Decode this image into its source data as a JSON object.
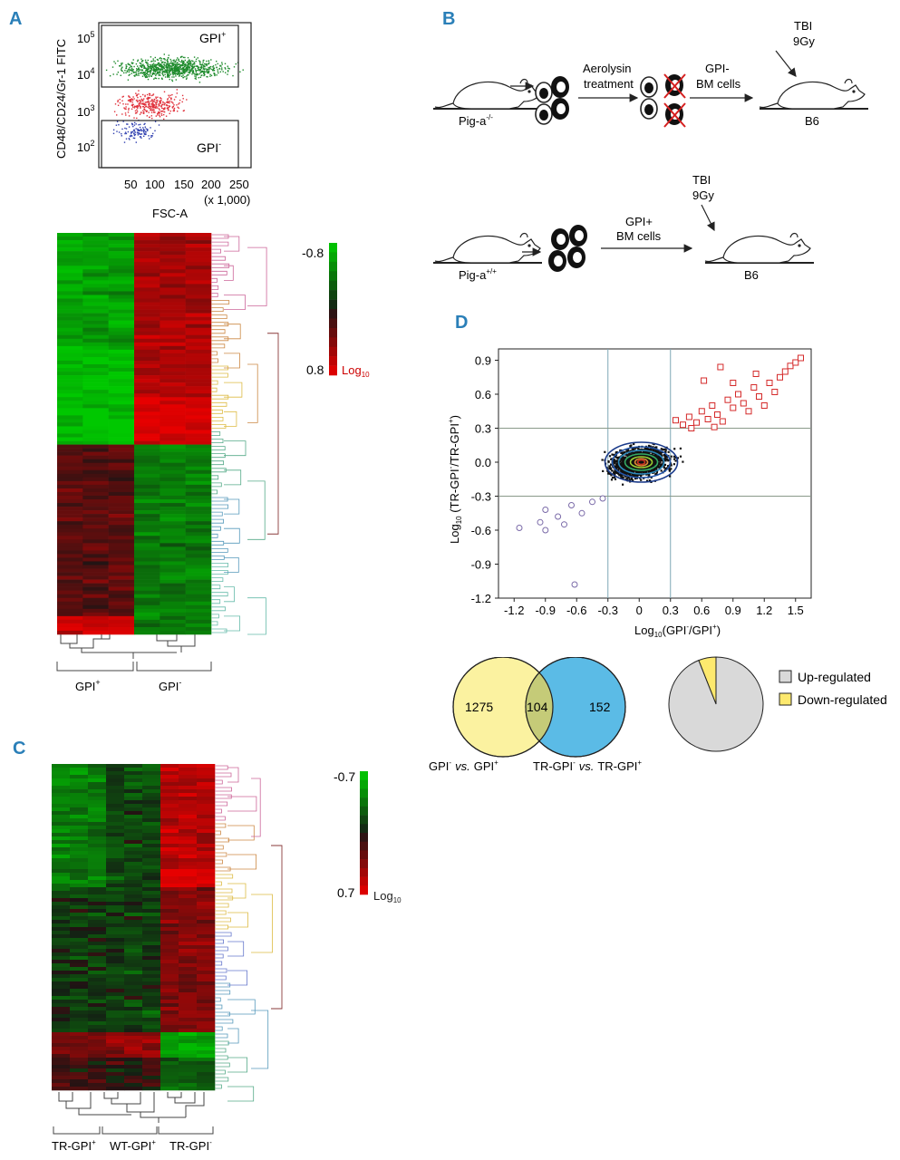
{
  "panels": {
    "A": {
      "letter": "A"
    },
    "B": {
      "letter": "B"
    },
    "C": {
      "letter": "C"
    },
    "D": {
      "letter": "D"
    }
  },
  "flow": {
    "y_label": "CD48/CD24/Gr-1 FITC",
    "x_label": "FSC-A",
    "x_unit": "(x 1,000)",
    "y_ticks": [
      "10",
      "10",
      "10",
      "10"
    ],
    "y_exps": [
      "5",
      "4",
      "3",
      "2"
    ],
    "x_ticks": [
      "50",
      "100",
      "150",
      "200",
      "250"
    ],
    "gate_pos": "GPI",
    "gate_pos_sup": "+",
    "gate_neg": "GPI",
    "gate_neg_sup": "-"
  },
  "heatmapA": {
    "scale_max": "-0.8",
    "scale_min": "0.8",
    "scale_unit": "Log",
    "scale_unit_sub": "10",
    "group1": "GPI",
    "group1_sup": "+",
    "group2": "GPI",
    "group2_sup": "-"
  },
  "schemeB": {
    "top": {
      "donor": "Pig-a",
      "donor_sup": "-/-",
      "treatment_line1": "Aerolysin",
      "treatment_line2": "treatment",
      "cells_line1": "GPI-",
      "cells_line2": "BM cells",
      "tbi_line1": "TBI",
      "tbi_line2": "9Gy",
      "recipient": "B6"
    },
    "bottom": {
      "donor": "Pig-a",
      "donor_sup": "+/+",
      "cells_line1": "GPI+",
      "cells_line2": "BM cells",
      "tbi_line1": "TBI",
      "tbi_line2": "9Gy",
      "recipient": "B6"
    }
  },
  "heatmapC": {
    "scale_max": "-0.7",
    "scale_min": "0.7",
    "scale_unit": "Log",
    "scale_unit_sub": "10",
    "group1": "TR-GPI",
    "group1_sup": "+",
    "group2": "WT-GPI",
    "group2_sup": "+",
    "group3": "TR-GPI",
    "group3_sup": "-"
  },
  "chart_data": [
    {
      "type": "scatter",
      "xlabel": "Log10(GPI-/GPI+)",
      "ylabel": "Log10 (TR-GPI-/TR-GPI+)",
      "x_ticks": [
        "-1.2",
        "-0.9",
        "-0.6",
        "-0.3",
        "0",
        "0.3",
        "0.6",
        "0.9",
        "1.2",
        "1.5"
      ],
      "y_ticks": [
        "0.9",
        "0.6",
        "0.3",
        "0.0",
        "-0.3",
        "-0.6",
        "-0.9",
        "-1.2"
      ],
      "xlim": [
        -1.35,
        1.65
      ],
      "ylim": [
        -1.2,
        1.0
      ],
      "thresholds_x": [
        -0.3,
        0.3
      ],
      "thresholds_y": [
        -0.3,
        0.3
      ],
      "series": [
        {
          "name": "Up-regulated",
          "points": [
            [
              0.35,
              0.37
            ],
            [
              0.42,
              0.33
            ],
            [
              0.48,
              0.4
            ],
            [
              0.55,
              0.35
            ],
            [
              0.6,
              0.45
            ],
            [
              0.66,
              0.38
            ],
            [
              0.7,
              0.5
            ],
            [
              0.75,
              0.42
            ],
            [
              0.8,
              0.36
            ],
            [
              0.85,
              0.55
            ],
            [
              0.9,
              0.48
            ],
            [
              0.95,
              0.6
            ],
            [
              1.0,
              0.52
            ],
            [
              1.05,
              0.45
            ],
            [
              1.1,
              0.66
            ],
            [
              1.15,
              0.58
            ],
            [
              1.2,
              0.5
            ],
            [
              1.25,
              0.7
            ],
            [
              1.3,
              0.62
            ],
            [
              1.35,
              0.75
            ],
            [
              1.4,
              0.8
            ],
            [
              1.45,
              0.85
            ],
            [
              1.5,
              0.88
            ],
            [
              1.55,
              0.92
            ],
            [
              0.62,
              0.72
            ],
            [
              0.78,
              0.84
            ],
            [
              0.9,
              0.7
            ],
            [
              1.12,
              0.78
            ],
            [
              0.5,
              0.3
            ],
            [
              0.72,
              0.31
            ]
          ]
        },
        {
          "name": "Down-regulated",
          "points": [
            [
              -1.15,
              -0.58
            ],
            [
              -0.95,
              -0.53
            ],
            [
              -0.9,
              -0.42
            ],
            [
              -0.78,
              -0.48
            ],
            [
              -0.72,
              -0.55
            ],
            [
              -0.65,
              -0.38
            ],
            [
              -0.55,
              -0.45
            ],
            [
              -0.45,
              -0.35
            ],
            [
              -0.35,
              -0.32
            ],
            [
              -0.62,
              -1.08
            ],
            [
              -0.9,
              -0.6
            ]
          ]
        }
      ]
    },
    {
      "type": "venn",
      "sets": [
        {
          "name": "GPI- vs. GPI+",
          "only": "1275"
        },
        {
          "name": "TR-GPI- vs. TR-GPI+",
          "only": "152"
        }
      ],
      "intersection": "104",
      "colors": [
        "#fbf2a0",
        "#5bbbe6"
      ]
    },
    {
      "type": "pie",
      "categories": [
        "Up-regulated",
        "Down-regulated"
      ],
      "values": [
        94,
        6
      ],
      "colors": [
        "#d9d9d9",
        "#fde96e"
      ]
    }
  ],
  "venn_labels": {
    "left_a": "GPI",
    "left_a_sup": "-",
    "left_vs": "vs.",
    "left_b": "GPI",
    "left_b_sup": "+",
    "right_a": "TR-GPI",
    "right_a_sup": "-",
    "right_vs": "vs.",
    "right_b": "TR-GPI",
    "right_b_sup": "+"
  },
  "scatter_labels": {
    "ylabel_pre": "Log",
    "ylabel_sub": "10",
    "ylabel_post": " (TR-GPI",
    "ylabel_s1": "-",
    "ylabel_mid": "/TR-GPI",
    "ylabel_s2": "+",
    "ylabel_end": ")",
    "xlabel_pre": "Log",
    "xlabel_sub": "10",
    "xlabel_post": "(GPI",
    "xlabel_s1": "-",
    "xlabel_mid": "/GPI",
    "xlabel_s2": "+",
    "xlabel_end": ")"
  }
}
